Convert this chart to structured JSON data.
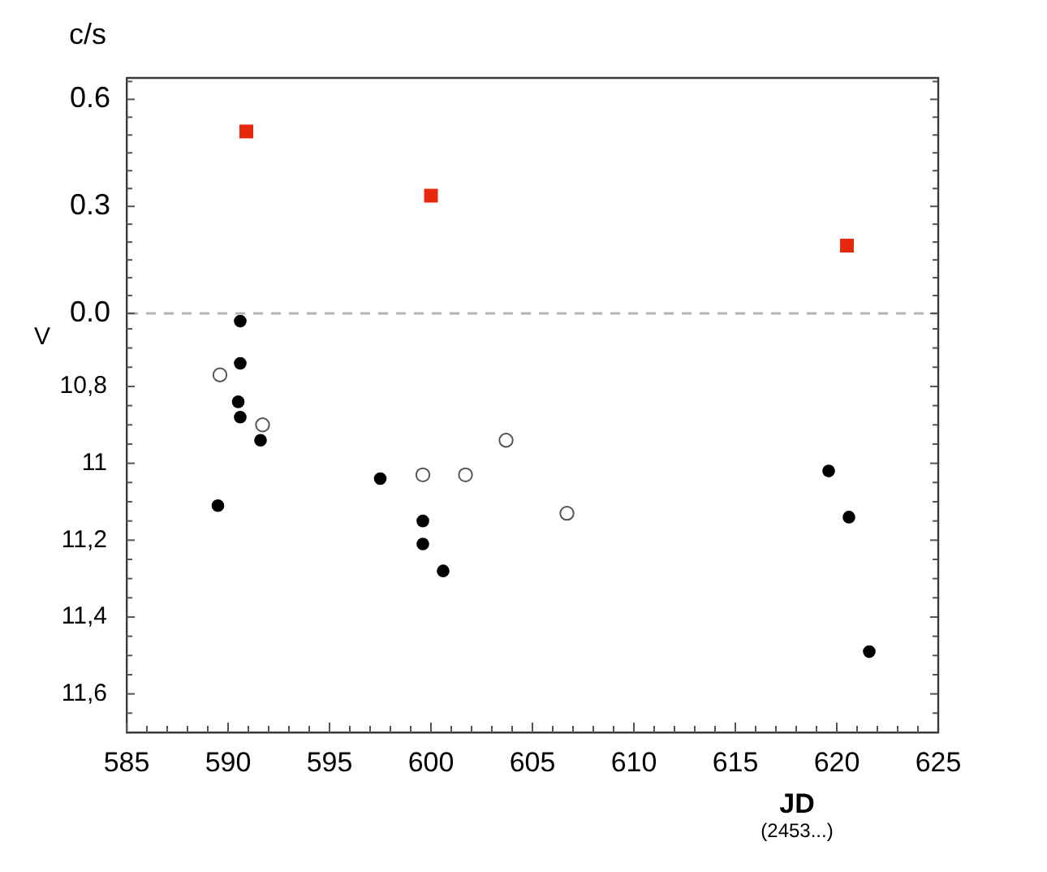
{
  "chart_data": [
    {
      "type": "scatter",
      "ylabel": "c/s",
      "tick_labels": "y",
      "series": [
        {
          "type": "scatter",
          "color": "#e8280c",
          "marker": "square",
          "x": [
            590.9,
            600.0,
            620.5
          ],
          "values": [
            0.51,
            0.33,
            0.19
          ]
        }
      ],
      "xlim": [
        585,
        625
      ],
      "ylim": [
        0,
        0.66
      ],
      "yticks": [
        {
          "value": 0,
          "label": "0.0"
        },
        {
          "value": 0.05,
          "label": null
        },
        {
          "value": 0.1,
          "label": null
        },
        {
          "value": 0.15,
          "label": null
        },
        {
          "value": 0.2,
          "label": null
        },
        {
          "value": 0.25,
          "label": null
        },
        0.3,
        {
          "value": 0.35,
          "label": null
        },
        {
          "value": 0.4,
          "label": null
        },
        {
          "value": 0.45,
          "label": null
        },
        {
          "value": 0.5,
          "label": null
        },
        {
          "value": 0.55,
          "label": null
        },
        0.6,
        {
          "value": 0.65,
          "label": null
        }
      ],
      "ref_lines": [
        {
          "axis": "y",
          "value": 0,
          "color": "#b4b4b4",
          "line_style": "dashed"
        }
      ]
    },
    {
      "type": "scatter",
      "xlabel": "JD",
      "ylabel": "V",
      "annotations": [
        "(2453...)"
      ],
      "series": [
        {
          "type": "scatter",
          "color": "#000000",
          "marker": "circle",
          "x": [
            590.6,
            590.6,
            590.5,
            590.6,
            591.6,
            589.5,
            597.5,
            599.6,
            599.6,
            600.6,
            619.6,
            620.6,
            621.6
          ],
          "values": [
            10.63,
            10.74,
            10.84,
            10.88,
            10.94,
            11.11,
            11.04,
            11.15,
            11.21,
            11.28,
            11.02,
            11.14,
            11.49
          ]
        },
        {
          "type": "scatter",
          "color": "#555555",
          "marker": "circle",
          "x": [
            589.6,
            591.7,
            599.6,
            601.7,
            603.7,
            606.7
          ],
          "values": [
            10.77,
            10.9,
            11.03,
            11.03,
            10.94,
            11.13
          ]
        }
      ],
      "xlim": [
        585,
        625
      ],
      "xticks": [
        585,
        {
          "value": 586,
          "label": null
        },
        {
          "value": 587,
          "label": null
        },
        {
          "value": 588,
          "label": null
        },
        {
          "value": 589,
          "label": null
        },
        590,
        {
          "value": 591,
          "label": null
        },
        {
          "value": 592,
          "label": null
        },
        {
          "value": 593,
          "label": null
        },
        {
          "value": 594,
          "label": null
        },
        595,
        {
          "value": 596,
          "label": null
        },
        {
          "value": 597,
          "label": null
        },
        {
          "value": 598,
          "label": null
        },
        {
          "value": 599,
          "label": null
        },
        600,
        {
          "value": 601,
          "label": null
        },
        {
          "value": 602,
          "label": null
        },
        {
          "value": 603,
          "label": null
        },
        {
          "value": 604,
          "label": null
        },
        605,
        {
          "value": 606,
          "label": null
        },
        {
          "value": 607,
          "label": null
        },
        {
          "value": 608,
          "label": null
        },
        {
          "value": 609,
          "label": null
        },
        610,
        {
          "value": 611,
          "label": null
        },
        {
          "value": 612,
          "label": null
        },
        {
          "value": 613,
          "label": null
        },
        {
          "value": 614,
          "label": null
        },
        615,
        {
          "value": 616,
          "label": null
        },
        {
          "value": 617,
          "label": null
        },
        {
          "value": 618,
          "label": null
        },
        {
          "value": 619,
          "label": null
        },
        620,
        {
          "value": 621,
          "label": null
        },
        {
          "value": 622,
          "label": null
        },
        {
          "value": 623,
          "label": null
        },
        {
          "value": 624,
          "label": null
        },
        625
      ],
      "ylim": [
        11.7,
        10.61
      ],
      "yticks": [
        {
          "value": 10.65,
          "label": null
        },
        {
          "value": 10.7,
          "label": null
        },
        {
          "value": 10.75,
          "label": null
        },
        {
          "value": 10.8,
          "label": "10,8"
        },
        {
          "value": 10.85,
          "label": null
        },
        {
          "value": 10.9,
          "label": null
        },
        {
          "value": 10.95,
          "label": null
        },
        11,
        {
          "value": 11.05,
          "label": null
        },
        {
          "value": 11.1,
          "label": null
        },
        {
          "value": 11.15,
          "label": null
        },
        {
          "value": 11.2,
          "label": "11,2"
        },
        {
          "value": 11.25,
          "label": null
        },
        {
          "value": 11.3,
          "label": null
        },
        {
          "value": 11.35,
          "label": null
        },
        {
          "value": 11.4,
          "label": "11,4"
        },
        {
          "value": 11.45,
          "label": null
        },
        {
          "value": 11.5,
          "label": null
        },
        {
          "value": 11.55,
          "label": null
        },
        {
          "value": 11.6,
          "label": "11,6"
        },
        {
          "value": 11.65,
          "label": null
        }
      ]
    }
  ]
}
